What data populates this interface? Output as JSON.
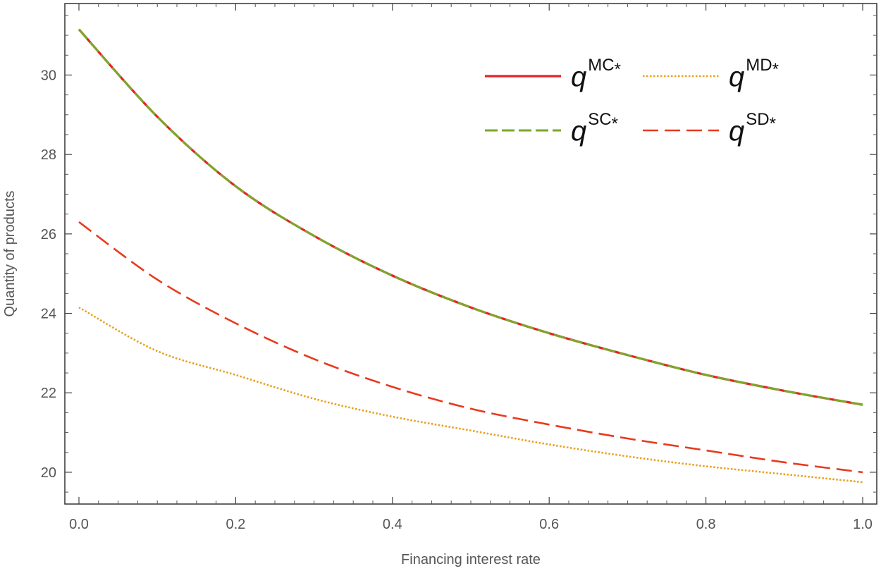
{
  "chart_data": {
    "type": "line",
    "xlabel": "Financing interest rate",
    "ylabel": "Quantity of products",
    "xlim": [
      0,
      1
    ],
    "ylim": [
      19.2,
      31.8
    ],
    "x_ticks": [
      0.0,
      0.2,
      0.4,
      0.6,
      0.8,
      1.0
    ],
    "x_tick_labels": [
      "0.0",
      "0.2",
      "0.4",
      "0.6",
      "0.8",
      "1.0"
    ],
    "y_ticks": [
      20,
      22,
      24,
      26,
      28,
      30
    ],
    "y_tick_labels": [
      "20",
      "22",
      "24",
      "26",
      "28",
      "30"
    ],
    "grid": false,
    "legend_position": "top-right",
    "x": [
      0.0,
      0.1,
      0.2,
      0.3,
      0.4,
      0.5,
      0.6,
      0.7,
      0.8,
      0.9,
      1.0
    ],
    "series": [
      {
        "name": "MC",
        "label_base": "q",
        "label_sup": "MC",
        "label_star": "*",
        "color": "#e8202a",
        "dash": "solid",
        "values": [
          31.15,
          28.95,
          27.2,
          25.95,
          24.95,
          24.15,
          23.5,
          22.95,
          22.45,
          22.05,
          21.7
        ]
      },
      {
        "name": "MD",
        "label_base": "q",
        "label_sup": "MD",
        "label_star": "*",
        "color": "#e8a020",
        "dash": "dotted",
        "values": [
          24.15,
          23.05,
          22.45,
          21.85,
          21.4,
          21.05,
          20.7,
          20.4,
          20.15,
          19.95,
          19.75
        ]
      },
      {
        "name": "SC",
        "label_base": "q",
        "label_sup": "SC",
        "label_star": "*",
        "color": "#7aa82a",
        "dash": "dashed",
        "values": [
          31.15,
          28.95,
          27.2,
          25.95,
          24.95,
          24.15,
          23.5,
          22.95,
          22.45,
          22.05,
          21.7
        ]
      },
      {
        "name": "SD",
        "label_base": "q",
        "label_sup": "SD",
        "label_star": "*",
        "color": "#e83a1e",
        "dash": "longdash",
        "values": [
          26.3,
          24.85,
          23.75,
          22.85,
          22.15,
          21.6,
          21.2,
          20.85,
          20.55,
          20.25,
          20.0
        ]
      }
    ]
  }
}
